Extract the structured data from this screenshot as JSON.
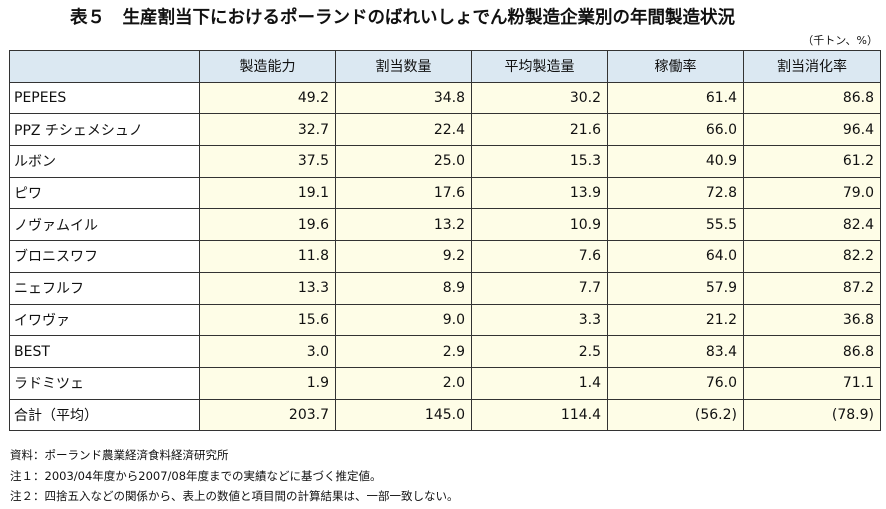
{
  "title": "表５　生産割当下におけるポーランドのばれいしょでん粉製造企業別の年間製造状況",
  "unit": "（千トン、%）",
  "columns": [
    "",
    "製造能力",
    "割当数量",
    "平均製造量",
    "稼働率",
    "割当消化率"
  ],
  "rows": [
    {
      "name": "PEPEES",
      "values": [
        "49.2",
        "34.8",
        "30.2",
        "61.4",
        "86.8"
      ]
    },
    {
      "name": "PPZ チシェメシュノ",
      "values": [
        "32.7",
        "22.4",
        "21.6",
        "66.0",
        "96.4"
      ]
    },
    {
      "name": "ルボン",
      "values": [
        "37.5",
        "25.0",
        "15.3",
        "40.9",
        "61.2"
      ]
    },
    {
      "name": "ピワ",
      "values": [
        "19.1",
        "17.6",
        "13.9",
        "72.8",
        "79.0"
      ]
    },
    {
      "name": "ノヴァムイル",
      "values": [
        "19.6",
        "13.2",
        "10.9",
        "55.5",
        "82.4"
      ]
    },
    {
      "name": "ブロニスワフ",
      "values": [
        "11.8",
        "9.2",
        "7.6",
        "64.0",
        "82.2"
      ]
    },
    {
      "name": "ニェフルフ",
      "values": [
        "13.3",
        "8.9",
        "7.7",
        "57.9",
        "87.2"
      ]
    },
    {
      "name": "イワヴァ",
      "values": [
        "15.6",
        "9.0",
        "3.3",
        "21.2",
        "36.8"
      ]
    },
    {
      "name": "BEST",
      "values": [
        "3.0",
        "2.9",
        "2.5",
        "83.4",
        "86.8"
      ]
    },
    {
      "name": "ラドミツェ",
      "values": [
        "1.9",
        "2.0",
        "1.4",
        "76.0",
        "71.1"
      ]
    },
    {
      "name": "合計（平均）",
      "values": [
        "203.7",
        "145.0",
        "114.4",
        "(56.2)",
        "(78.9)"
      ]
    }
  ],
  "notes": [
    "資料：ポーランド農業経済食料経済研究所",
    "注１：2003/04年度から2007/08年度までの実績などに基づく推定値。",
    "注２：四捨五入などの関係から、表上の数値と項目間の計算結果は、一部一致しない。"
  ]
}
